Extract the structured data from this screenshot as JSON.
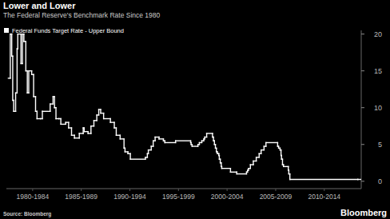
{
  "chart_data": {
    "type": "line",
    "line_style": "step",
    "title": "Lower and Lower",
    "subtitle": "The Federal Reserve's Benchmark Rate Since 1980",
    "source": "Source: Bloomberg",
    "brand": "Bloomberg",
    "legend": "upper left",
    "grid": false,
    "x": [
      1980.0,
      1980.2,
      1980.35,
      1980.45,
      1980.55,
      1980.75,
      1980.9,
      1980.97,
      1981.3,
      1981.45,
      1981.6,
      1981.8,
      1981.95,
      1982.1,
      1982.4,
      1982.6,
      1982.8,
      1982.95,
      1983.3,
      1983.5,
      1984.3,
      1984.6,
      1984.75,
      1984.9,
      1985.2,
      1985.4,
      1985.9,
      1986.2,
      1986.5,
      1986.8,
      1987.3,
      1987.7,
      1987.8,
      1988.2,
      1988.5,
      1988.8,
      1989.1,
      1989.3,
      1989.5,
      1989.8,
      1990.5,
      1990.9,
      1991.1,
      1991.5,
      1991.9,
      1992.0,
      1992.3,
      1992.55,
      1994.1,
      1994.3,
      1994.4,
      1994.7,
      1994.9,
      1995.1,
      1995.5,
      1995.95,
      1996.1,
      1997.2,
      1998.75,
      1998.8,
      1998.9,
      1999.5,
      1999.65,
      1999.9,
      2000.1,
      2000.2,
      2000.4,
      2001.0,
      2001.1,
      2001.2,
      2001.3,
      2001.4,
      2001.5,
      2001.65,
      2001.7,
      2001.8,
      2001.9,
      2001.95,
      2002.85,
      2003.5,
      2004.5,
      2004.6,
      2004.7,
      2004.9,
      2005.2,
      2005.5,
      2005.8,
      2006.0,
      2006.3,
      2006.5,
      2007.7,
      2007.8,
      2007.95,
      2008.05,
      2008.1,
      2008.2,
      2008.3,
      2008.8,
      2008.85,
      2008.96,
      2015.95
    ],
    "series": [
      {
        "name": "Federal Funds Target Rate - Upper Bound",
        "color": "#ffffff",
        "values": [
          14,
          20,
          17,
          11,
          9.5,
          12,
          18,
          20,
          16,
          20,
          19,
          15,
          12,
          15,
          14.5,
          11.5,
          9.5,
          8.5,
          8.5,
          9.5,
          10.5,
          11.5,
          10,
          8.5,
          8.5,
          7.75,
          8,
          7.25,
          6.25,
          5.875,
          6.5,
          7.25,
          6.75,
          6.5,
          7.5,
          8.25,
          9,
          9.75,
          9.25,
          8.5,
          8,
          7.25,
          6.25,
          5.75,
          4.5,
          4,
          3.75,
          3,
          3.25,
          3.75,
          4.25,
          4.75,
          5.5,
          6,
          5.75,
          5.5,
          5.25,
          5.5,
          5.25,
          5,
          4.75,
          5,
          5.25,
          5.5,
          5.75,
          6,
          6.5,
          6,
          5.5,
          5,
          4.5,
          4,
          3.75,
          3.5,
          3,
          2.5,
          2,
          1.75,
          1.25,
          1,
          1.25,
          1.5,
          1.75,
          2.25,
          2.75,
          3.25,
          3.75,
          4.25,
          4.75,
          5.25,
          4.75,
          4.5,
          4.25,
          3.5,
          3,
          2.25,
          2,
          1.5,
          1,
          0.25,
          0.25
        ]
      }
    ],
    "xlim": [
      1979.8,
      2016.3
    ],
    "xticks": [
      {
        "value": 1982.5,
        "label": "1980-1984"
      },
      {
        "value": 1987.5,
        "label": "1985-1989"
      },
      {
        "value": 1992.5,
        "label": "1990-1994"
      },
      {
        "value": 1997.5,
        "label": "1995-1999"
      },
      {
        "value": 2002.5,
        "label": "2000-2004"
      },
      {
        "value": 2007.5,
        "label": "2005-2009"
      },
      {
        "value": 2012.5,
        "label": "2010-2014"
      }
    ],
    "ylim": [
      -1,
      20.5
    ],
    "yticks": [
      0,
      5,
      10,
      15,
      20
    ]
  }
}
